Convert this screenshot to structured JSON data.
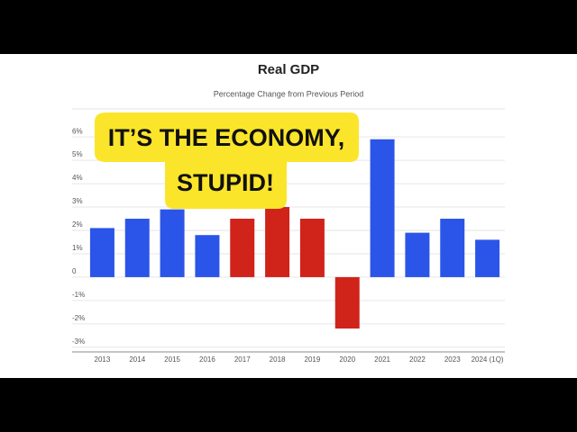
{
  "chart_data": {
    "type": "bar",
    "title": "Real GDP",
    "subtitle": "Percentage Change from Previous Period",
    "categories": [
      "2013",
      "2014",
      "2015",
      "2016",
      "2017",
      "2018",
      "2019",
      "2020",
      "2021",
      "2022",
      "2023",
      "2024 (1Q)"
    ],
    "values": [
      2.1,
      2.5,
      2.9,
      1.8,
      2.5,
      3.0,
      2.5,
      -2.2,
      5.9,
      1.9,
      2.5,
      1.6
    ],
    "colors": [
      "#2b55e8",
      "#2b55e8",
      "#2b55e8",
      "#2b55e8",
      "#d0231a",
      "#d0231a",
      "#d0231a",
      "#d0231a",
      "#2b55e8",
      "#2b55e8",
      "#2b55e8",
      "#2b55e8"
    ],
    "ylim": [
      -3.2,
      7.2
    ],
    "yticks": [
      {
        "value": -3,
        "label": "-3%"
      },
      {
        "value": -2,
        "label": "-2%"
      },
      {
        "value": -1,
        "label": "-1%"
      },
      0,
      {
        "value": 1,
        "label": "1%"
      },
      {
        "value": 2,
        "label": "2%"
      },
      {
        "value": 3,
        "label": "3%"
      },
      {
        "value": 4,
        "label": "4%"
      },
      {
        "value": 5,
        "label": "5%"
      },
      {
        "value": 6,
        "label": "6%"
      }
    ],
    "grid": true,
    "annotation": [
      "IT’S THE ECONOMY,",
      "STUPID!"
    ]
  }
}
